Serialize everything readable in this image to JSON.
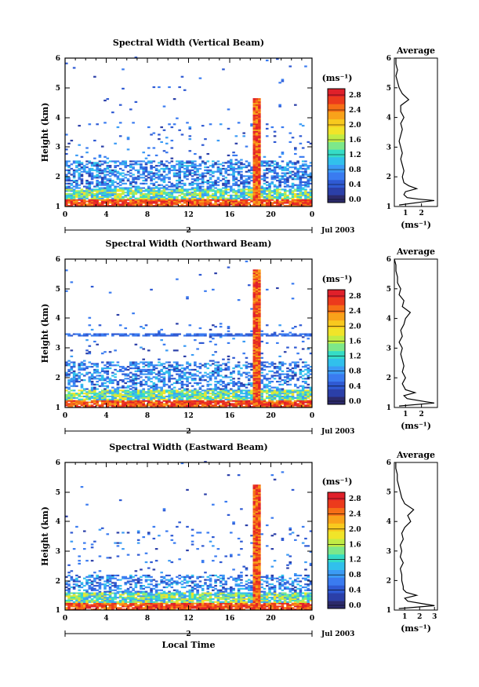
{
  "colorbar": {
    "unit_label": "(ms⁻¹)",
    "ticks": [
      "0.0",
      "0.4",
      "0.8",
      "1.2",
      "1.6",
      "2.0",
      "2.4",
      "2.8"
    ],
    "colors": [
      "#2c2a6b",
      "#2b3fa8",
      "#2f5ad3",
      "#3a7bf0",
      "#3b9bf5",
      "#31c0ec",
      "#35dcc6",
      "#7de88a",
      "#c1ec45",
      "#f1e429",
      "#f8c91e",
      "#f9a21a",
      "#f66e16",
      "#ec3a1c",
      "#e0202a"
    ]
  },
  "date_label": "Jul 2003",
  "day_label": "2",
  "x_axis_label": "Local Time",
  "avg_title": "Average",
  "avg_xlabel": "(ms⁻¹)",
  "chart_data": [
    {
      "type": "heatmap",
      "title": "Spectral Width (Vertical Beam)",
      "xlabel": "",
      "ylabel": "Height (km)",
      "xlim": [
        0,
        24
      ],
      "ylim": [
        1,
        6
      ],
      "xticks": [
        "0",
        "4",
        "8",
        "12",
        "16",
        "20",
        "0"
      ],
      "yticks": [
        "1",
        "2",
        "3",
        "4",
        "5",
        "6"
      ],
      "colorbar_range": [
        0,
        3.0
      ],
      "profile": {
        "title": "Average",
        "xlim": [
          0.3,
          3.0
        ],
        "xticks": [
          "1",
          "2"
        ],
        "yticks": [
          "1",
          "2",
          "3",
          "4",
          "5",
          "6"
        ],
        "height": [
          1.05,
          1.15,
          1.2,
          1.25,
          1.3,
          1.4,
          1.5,
          1.6,
          1.7,
          1.8,
          2.0,
          2.2,
          2.4,
          2.6,
          2.8,
          3.0,
          3.2,
          3.4,
          3.6,
          3.8,
          4.0,
          4.2,
          4.4,
          4.6,
          4.8,
          5.0,
          5.2,
          5.4,
          5.6,
          5.8,
          6.0
        ],
        "width": [
          0.6,
          2.0,
          2.8,
          1.8,
          1.1,
          0.9,
          1.0,
          1.7,
          1.2,
          0.9,
          0.8,
          0.9,
          0.8,
          0.7,
          0.8,
          0.7,
          0.6,
          0.7,
          0.8,
          0.7,
          0.9,
          0.7,
          0.7,
          1.2,
          0.8,
          0.6,
          0.5,
          0.4,
          0.5,
          0.4,
          0.4
        ]
      }
    },
    {
      "type": "heatmap",
      "title": "Spectral Width (Northward Beam)",
      "xlabel": "",
      "ylabel": "Height (km)",
      "xlim": [
        0,
        24
      ],
      "ylim": [
        1,
        6
      ],
      "xticks": [
        "0",
        "4",
        "8",
        "12",
        "16",
        "20",
        "0"
      ],
      "yticks": [
        "1",
        "2",
        "3",
        "4",
        "5",
        "6"
      ],
      "colorbar_range": [
        0,
        3.0
      ],
      "profile": {
        "title": "Average",
        "xlim": [
          0.3,
          3.0
        ],
        "xticks": [
          "1",
          "2"
        ],
        "yticks": [
          "1",
          "2",
          "3",
          "4",
          "5",
          "6"
        ],
        "height": [
          1.05,
          1.15,
          1.2,
          1.3,
          1.4,
          1.5,
          1.6,
          1.7,
          1.8,
          2.0,
          2.2,
          2.4,
          2.6,
          2.8,
          3.0,
          3.2,
          3.4,
          3.6,
          3.8,
          4.0,
          4.2,
          4.4,
          4.6,
          4.8,
          5.0,
          5.2,
          5.4,
          5.6,
          5.8,
          6.0
        ],
        "width": [
          0.6,
          2.8,
          2.2,
          1.1,
          0.9,
          1.6,
          1.0,
          0.9,
          0.8,
          1.0,
          0.8,
          0.9,
          0.8,
          0.7,
          0.8,
          0.6,
          0.8,
          0.7,
          0.9,
          1.0,
          1.3,
          0.8,
          0.9,
          0.6,
          0.7,
          0.5,
          0.5,
          0.4,
          0.4,
          0.3
        ]
      }
    },
    {
      "type": "heatmap",
      "title": "Spectral Width (Eastward Beam)",
      "xlabel": "Local Time",
      "ylabel": "Height (km)",
      "xlim": [
        0,
        24
      ],
      "ylim": [
        1,
        6
      ],
      "xticks": [
        "0",
        "4",
        "8",
        "12",
        "16",
        "20",
        "0"
      ],
      "yticks": [
        "1",
        "2",
        "3",
        "4",
        "5",
        "6"
      ],
      "colorbar_range": [
        0,
        3.0
      ],
      "profile": {
        "title": "Average",
        "xlim": [
          0.3,
          3.2
        ],
        "xticks": [
          "1",
          "2",
          "3"
        ],
        "yticks": [
          "1",
          "2",
          "3",
          "4",
          "5",
          "6"
        ],
        "height": [
          1.05,
          1.15,
          1.2,
          1.3,
          1.4,
          1.5,
          1.6,
          1.7,
          1.8,
          2.0,
          2.2,
          2.4,
          2.6,
          2.8,
          3.0,
          3.2,
          3.4,
          3.6,
          3.8,
          4.0,
          4.2,
          4.4,
          4.6,
          4.8,
          5.0,
          5.2,
          5.4,
          5.6,
          5.8,
          6.0
        ],
        "width": [
          0.6,
          3.0,
          2.4,
          1.2,
          1.0,
          1.8,
          1.1,
          0.9,
          0.9,
          0.8,
          0.8,
          0.7,
          0.9,
          0.7,
          0.8,
          0.7,
          0.9,
          0.8,
          1.0,
          1.4,
          1.2,
          1.6,
          1.0,
          0.8,
          0.7,
          0.6,
          0.5,
          0.5,
          0.4,
          0.4
        ]
      }
    }
  ]
}
